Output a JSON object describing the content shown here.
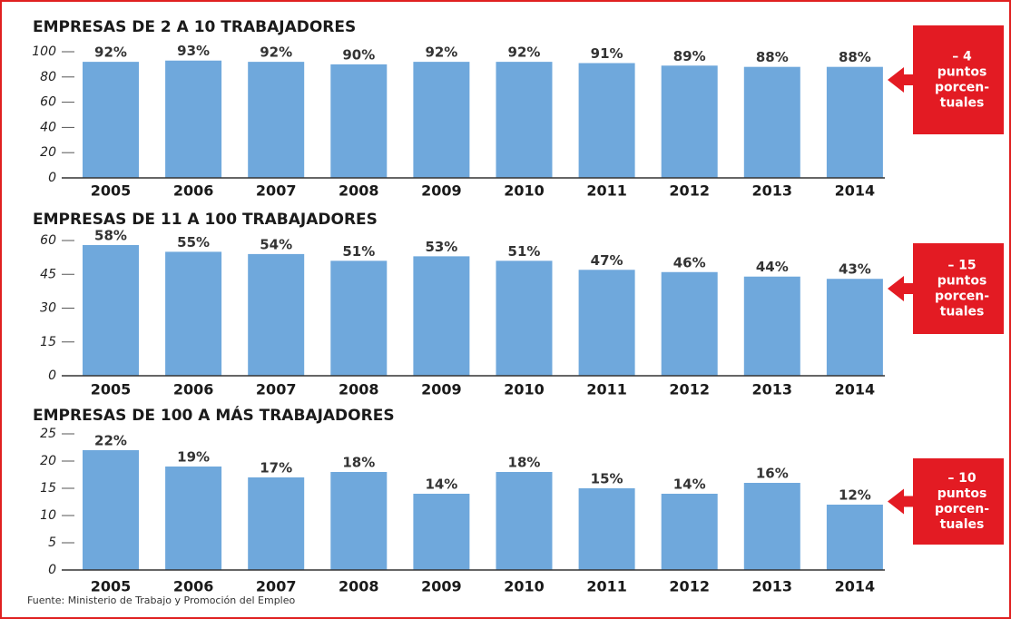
{
  "chart_data": [
    {
      "type": "bar",
      "title": "EMPRESAS DE 2 A 10 TRABAJADORES",
      "categories": [
        "2005",
        "2006",
        "2007",
        "2008",
        "2009",
        "2010",
        "2011",
        "2012",
        "2013",
        "2014"
      ],
      "values": [
        92,
        93,
        92,
        90,
        92,
        92,
        91,
        89,
        88,
        88
      ],
      "value_labels": [
        "92%",
        "93%",
        "92%",
        "90%",
        "92%",
        "92%",
        "91%",
        "89%",
        "88%",
        "88%"
      ],
      "color": "#6fa8dc",
      "ylim": [
        0,
        100
      ],
      "yticks": [
        0,
        20,
        40,
        60,
        80,
        100
      ],
      "annotation": [
        "– 4",
        "puntos",
        "porcen-",
        "tuales"
      ]
    },
    {
      "type": "bar",
      "title": "EMPRESAS DE 11 A 100 TRABAJADORES",
      "categories": [
        "2005",
        "2006",
        "2007",
        "2008",
        "2009",
        "2010",
        "2011",
        "2012",
        "2013",
        "2014"
      ],
      "values": [
        58,
        55,
        54,
        51,
        53,
        51,
        47,
        46,
        44,
        43
      ],
      "value_labels": [
        "58%",
        "55%",
        "54%",
        "51%",
        "53%",
        "51%",
        "47%",
        "46%",
        "44%",
        "43%"
      ],
      "color": "#6fa8dc",
      "ylim": [
        0,
        60
      ],
      "yticks": [
        0,
        15,
        30,
        45,
        60
      ],
      "annotation": [
        "– 15",
        "puntos",
        "porcen-",
        "tuales"
      ]
    },
    {
      "type": "bar",
      "title": "EMPRESAS DE 100 A MÁS TRABAJADORES",
      "categories": [
        "2005",
        "2006",
        "2007",
        "2008",
        "2009",
        "2010",
        "2011",
        "2012",
        "2013",
        "2014"
      ],
      "values": [
        22,
        19,
        17,
        18,
        14,
        18,
        15,
        14,
        16,
        12
      ],
      "value_labels": [
        "22%",
        "19%",
        "17%",
        "18%",
        "14%",
        "18%",
        "15%",
        "14%",
        "16%",
        "12%"
      ],
      "color": "#6fa8dc",
      "ylim": [
        0,
        25
      ],
      "yticks": [
        0,
        5,
        10,
        15,
        20,
        25
      ],
      "annotation": [
        "– 10",
        "puntos",
        "porcen-",
        "tuales"
      ]
    }
  ],
  "source": "Fuente: Ministerio de Trabajo y Promoción del Empleo"
}
